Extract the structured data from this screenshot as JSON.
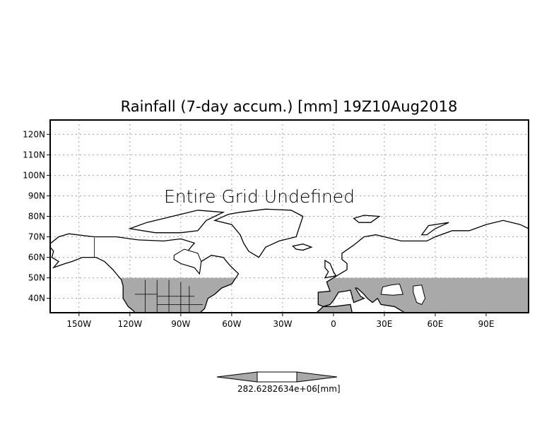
{
  "title": "Rainfall (7-day accum.) [mm] 19Z10Aug2018",
  "overlay_message": "Entire Grid Undefined",
  "map": {
    "lon_range": [
      -167,
      115
    ],
    "lat_range": [
      33,
      127
    ],
    "lon_ticks": [
      {
        "value": -150,
        "label": "150W"
      },
      {
        "value": -120,
        "label": "120W"
      },
      {
        "value": -90,
        "label": "90W"
      },
      {
        "value": -60,
        "label": "60W"
      },
      {
        "value": -30,
        "label": "30W"
      },
      {
        "value": 0,
        "label": "0"
      },
      {
        "value": 30,
        "label": "30E"
      },
      {
        "value": 60,
        "label": "60E"
      },
      {
        "value": 90,
        "label": "90E"
      }
    ],
    "lat_ticks": [
      {
        "value": 40,
        "label": "40N"
      },
      {
        "value": 50,
        "label": "50N"
      },
      {
        "value": 60,
        "label": "60N"
      },
      {
        "value": 70,
        "label": "70N"
      },
      {
        "value": 80,
        "label": "80N"
      },
      {
        "value": 90,
        "label": "90N"
      },
      {
        "value": 100,
        "label": "100N"
      },
      {
        "value": 110,
        "label": "110N"
      },
      {
        "value": 120,
        "label": "120N"
      }
    ],
    "masked_lat_max": 50,
    "land_fill": "#a9a9a9",
    "grid_color": "#a0a0a0"
  },
  "colorbar": {
    "label": "282.6282634e+06[mm]",
    "fill_color": "#a9a9a9"
  }
}
